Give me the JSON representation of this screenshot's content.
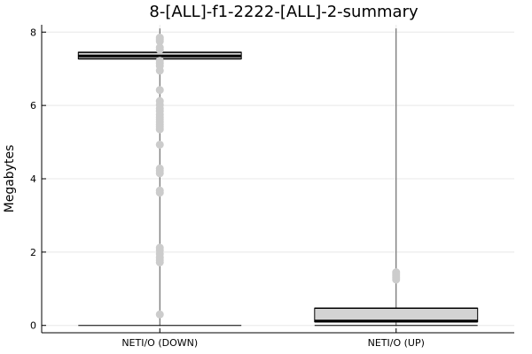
{
  "chart_data": {
    "type": "box",
    "title": "8-[ALL]-f1-2222-[ALL]-2-summary",
    "xlabel": "",
    "ylabel": "Megabytes",
    "ylim": [
      -0.2,
      8.2
    ],
    "yticks": [
      0,
      2,
      4,
      6,
      8
    ],
    "grid": true,
    "legend": "none",
    "categories": [
      "NETI/O (DOWN)",
      "NETI/O (UP)"
    ],
    "series": [
      {
        "category": "NETI/O (DOWN)",
        "min": 0.0,
        "q1": 7.27,
        "median": 7.35,
        "q3": 7.45,
        "max": 8.1,
        "outliers": [
          0.3,
          1.72,
          1.78,
          1.85,
          1.95,
          2.05,
          2.12,
          3.62,
          3.68,
          4.15,
          4.22,
          4.28,
          4.93,
          5.35,
          5.42,
          5.48,
          5.55,
          5.62,
          5.68,
          5.75,
          5.85,
          5.92,
          6.02,
          6.12,
          6.42,
          6.95,
          7.08,
          7.15,
          7.22,
          7.52,
          7.58,
          7.75,
          7.8,
          7.85
        ]
      },
      {
        "category": "NETI/O (UP)",
        "min": 0.0,
        "q1": 0.1,
        "median": 0.12,
        "q3": 0.47,
        "max": 8.1,
        "outliers": [
          1.25,
          1.3,
          1.35,
          1.4,
          1.45
        ]
      }
    ],
    "colors": {
      "box_fill": "#d3d3d3",
      "box_stroke": "#000000",
      "outlier": "#cccccc",
      "grid": "#e8e8e8",
      "axis": "#000000"
    }
  }
}
